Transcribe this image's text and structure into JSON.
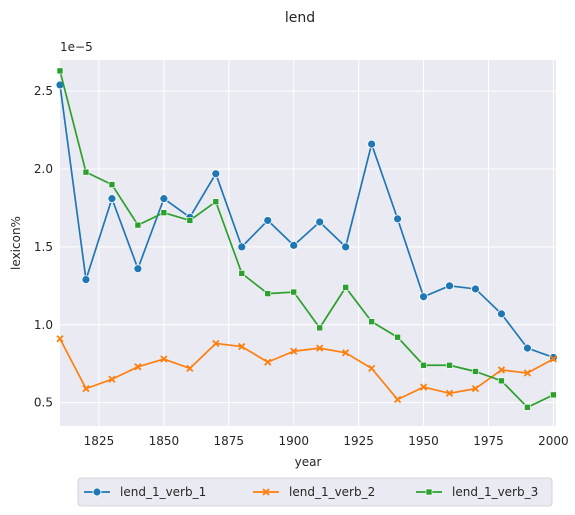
{
  "chart_data": {
    "type": "line",
    "title": "lend",
    "xlabel": "year",
    "ylabel": "lexicon%",
    "y_offset_label": "1e−5",
    "xlim": [
      1810,
      2001
    ],
    "ylim": [
      0.35,
      2.7
    ],
    "x_ticks": [
      1825,
      1850,
      1875,
      1900,
      1925,
      1950,
      1975,
      2000
    ],
    "x_tick_labels": [
      "1825",
      "1850",
      "1875",
      "1900",
      "1925",
      "1950",
      "1975",
      "2000"
    ],
    "y_ticks": [
      0.5,
      1.0,
      1.5,
      2.0,
      2.5
    ],
    "y_tick_labels": [
      "0.5",
      "1.0",
      "1.5",
      "2.0",
      "2.5"
    ],
    "grid": true,
    "legend_position": "bottom-center",
    "x": [
      1810,
      1820,
      1830,
      1840,
      1850,
      1860,
      1870,
      1880,
      1890,
      1900,
      1910,
      1920,
      1930,
      1940,
      1950,
      1960,
      1970,
      1980,
      1990,
      2000
    ],
    "series": [
      {
        "name": "lend_1_verb_1",
        "color": "#1f77b4",
        "marker": "circle",
        "values": [
          2.54,
          1.29,
          1.81,
          1.36,
          1.81,
          1.69,
          1.97,
          1.5,
          1.67,
          1.51,
          1.66,
          1.5,
          2.16,
          1.68,
          1.18,
          1.25,
          1.23,
          1.07,
          0.85,
          0.79
        ]
      },
      {
        "name": "lend_1_verb_2",
        "color": "#ff7f0e",
        "marker": "x",
        "values": [
          0.91,
          0.59,
          0.65,
          0.73,
          0.78,
          0.72,
          0.88,
          0.86,
          0.76,
          0.83,
          0.85,
          0.82,
          0.72,
          0.52,
          0.6,
          0.56,
          0.59,
          0.71,
          0.69,
          0.78
        ]
      },
      {
        "name": "lend_1_verb_3",
        "color": "#2ca02c",
        "marker": "square",
        "values": [
          2.63,
          1.98,
          1.9,
          1.64,
          1.72,
          1.67,
          1.79,
          1.33,
          1.2,
          1.21,
          0.98,
          1.24,
          1.02,
          0.92,
          0.74,
          0.74,
          0.7,
          0.64,
          0.47,
          0.55
        ]
      }
    ]
  }
}
